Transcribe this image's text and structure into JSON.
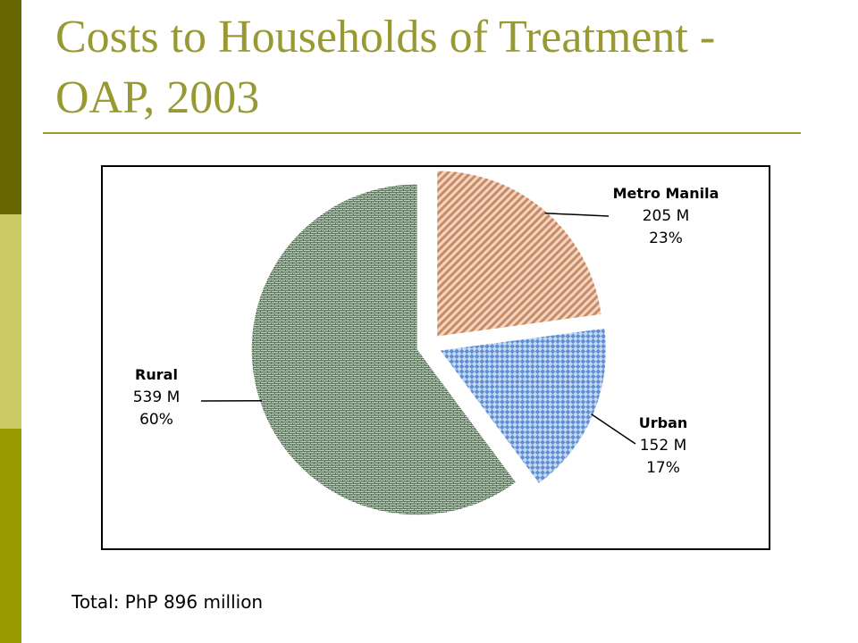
{
  "slide": {
    "title": "Costs to Households of Treatment - OAP, 2003",
    "footer": "Total: PhP 896 million"
  },
  "colors": {
    "bar_top": "#666600",
    "bar_middle": "#cccc66",
    "bar_bottom": "#999900",
    "title": "#999933"
  },
  "chart_data": {
    "type": "pie",
    "title": "",
    "unit": "M",
    "legend": "none",
    "exploded": true,
    "slices": [
      {
        "name": "Metro Manila",
        "value": 205,
        "value_label": "205 M",
        "percent_label": "23%",
        "color": "#e8a882",
        "pattern": "diagonal-stripes"
      },
      {
        "name": "Urban",
        "value": 152,
        "value_label": "152 M",
        "percent_label": "17%",
        "color": "#8db4e8",
        "pattern": "diamond-checker"
      },
      {
        "name": "Rural",
        "value": 539,
        "value_label": "539 M",
        "percent_label": "60%",
        "color": "#6b8e6b",
        "pattern": "brick"
      }
    ]
  }
}
